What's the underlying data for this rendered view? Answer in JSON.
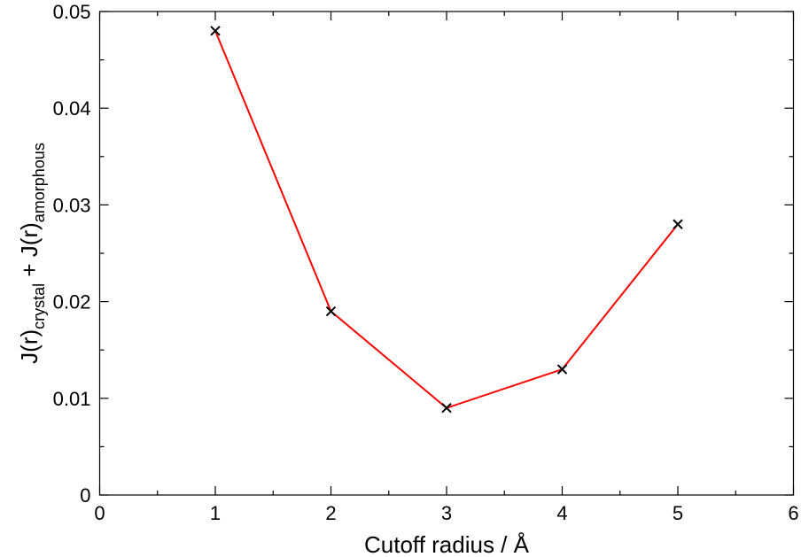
{
  "chart_data": {
    "type": "line",
    "x": [
      1,
      2,
      3,
      4,
      5
    ],
    "values": [
      0.048,
      0.019,
      0.009,
      0.013,
      0.028
    ],
    "color": "#ff0000",
    "marker_color": "#000000",
    "marker": "x",
    "xlim": [
      0,
      6
    ],
    "xticks": [
      0,
      1,
      2,
      3,
      4,
      5,
      6
    ],
    "ylim": [
      0,
      0.05
    ],
    "yticks": [
      0,
      0.01,
      0.02,
      0.03,
      0.04,
      0.05
    ],
    "xlabel": "Cutoff radius / Å",
    "ylabel": {
      "main1": "J(r)",
      "sub1": "crystal",
      "main2": " + J(r)",
      "sub2": "amorphous"
    },
    "grid": false
  }
}
